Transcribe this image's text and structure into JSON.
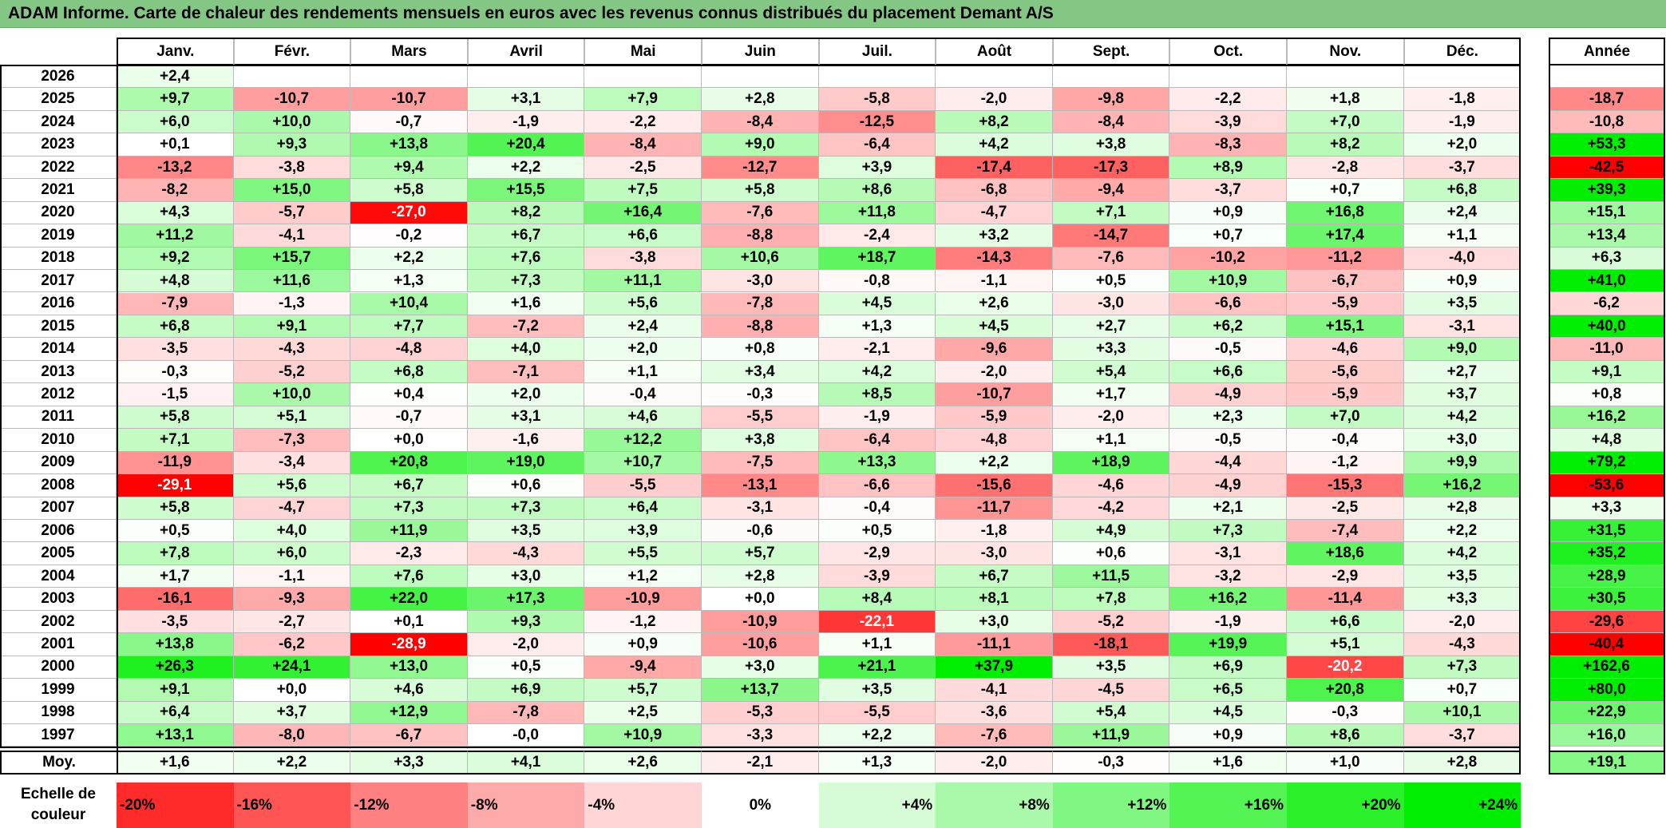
{
  "title": "ADAM Informe. Carte de chaleur des rendements mensuels en euros avec les revenus connus distribués du placement Demant A/S",
  "chart_data": {
    "type": "heatmap",
    "months": [
      "Janv.",
      "Févr.",
      "Mars",
      "Avril",
      "Mai",
      "Juin",
      "Juil.",
      "Août",
      "Sept.",
      "Oct.",
      "Nov.",
      "Déc."
    ],
    "year_header": "Année",
    "avg_label": "Moy.",
    "rows": [
      {
        "year": "2026",
        "values": [
          "+2,4",
          "",
          "",
          "",
          "",
          "",
          "",
          "",
          "",
          "",
          "",
          ""
        ],
        "annual": ""
      },
      {
        "year": "2025",
        "values": [
          "+9,7",
          "-10,7",
          "-10,7",
          "+3,1",
          "+7,9",
          "+2,8",
          "-5,8",
          "-2,0",
          "-9,8",
          "-2,2",
          "+1,8",
          "-1,8"
        ],
        "annual": "-18,7"
      },
      {
        "year": "2024",
        "values": [
          "+6,0",
          "+10,0",
          "-0,7",
          "-1,9",
          "-2,2",
          "-8,4",
          "-12,5",
          "+8,2",
          "-8,4",
          "-3,9",
          "+7,0",
          "-1,9"
        ],
        "annual": "-10,8"
      },
      {
        "year": "2023",
        "values": [
          "+0,1",
          "+9,3",
          "+13,8",
          "+20,4",
          "-8,4",
          "+9,0",
          "-6,4",
          "+4,2",
          "+3,8",
          "-8,3",
          "+8,2",
          "+2,0"
        ],
        "annual": "+53,3"
      },
      {
        "year": "2022",
        "values": [
          "-13,2",
          "-3,8",
          "+9,4",
          "+2,2",
          "-2,5",
          "-12,7",
          "+3,9",
          "-17,4",
          "-17,3",
          "+8,9",
          "-2,8",
          "-3,7"
        ],
        "annual": "-42,5"
      },
      {
        "year": "2021",
        "values": [
          "-8,2",
          "+15,0",
          "+5,8",
          "+15,5",
          "+7,5",
          "+5,8",
          "+8,6",
          "-6,8",
          "-9,4",
          "-3,7",
          "+0,7",
          "+6,8"
        ],
        "annual": "+39,3"
      },
      {
        "year": "2020",
        "values": [
          "+4,3",
          "-5,7",
          "-27,0",
          "+8,2",
          "+16,4",
          "-7,6",
          "+11,8",
          "-4,7",
          "+7,1",
          "+0,9",
          "+16,8",
          "+2,4"
        ],
        "annual": "+15,1"
      },
      {
        "year": "2019",
        "values": [
          "+11,2",
          "-4,1",
          "-0,2",
          "+6,7",
          "+6,6",
          "-8,8",
          "-2,4",
          "+3,2",
          "-14,7",
          "+0,7",
          "+17,4",
          "+1,1"
        ],
        "annual": "+13,4"
      },
      {
        "year": "2018",
        "values": [
          "+9,2",
          "+15,7",
          "+2,2",
          "+7,6",
          "-3,8",
          "+10,6",
          "+18,7",
          "-14,3",
          "-7,6",
          "-10,2",
          "-11,2",
          "-4,0"
        ],
        "annual": "+6,3"
      },
      {
        "year": "2017",
        "values": [
          "+4,8",
          "+11,6",
          "+1,3",
          "+7,3",
          "+11,1",
          "-3,0",
          "-0,8",
          "-1,1",
          "+0,5",
          "+10,9",
          "-6,7",
          "+0,9"
        ],
        "annual": "+41,0"
      },
      {
        "year": "2016",
        "values": [
          "-7,9",
          "-1,3",
          "+10,4",
          "+1,6",
          "+5,6",
          "-7,8",
          "+4,5",
          "+2,6",
          "-3,0",
          "-6,6",
          "-5,9",
          "+3,5"
        ],
        "annual": "-6,2"
      },
      {
        "year": "2015",
        "values": [
          "+6,8",
          "+9,1",
          "+7,7",
          "-7,2",
          "+2,4",
          "-8,8",
          "+1,3",
          "+4,5",
          "+2,7",
          "+6,2",
          "+15,1",
          "-3,1"
        ],
        "annual": "+40,0"
      },
      {
        "year": "2014",
        "values": [
          "-3,5",
          "-4,3",
          "-4,8",
          "+4,0",
          "+2,0",
          "+0,8",
          "-2,1",
          "-9,6",
          "+3,3",
          "-0,5",
          "-4,6",
          "+9,0"
        ],
        "annual": "-11,0"
      },
      {
        "year": "2013",
        "values": [
          "-0,3",
          "-5,2",
          "+6,8",
          "-7,1",
          "+1,1",
          "+3,4",
          "+4,2",
          "-2,0",
          "+5,4",
          "+6,6",
          "-5,6",
          "+2,7"
        ],
        "annual": "+9,1"
      },
      {
        "year": "2012",
        "values": [
          "-1,5",
          "+10,0",
          "+0,4",
          "+2,0",
          "-0,4",
          "-0,3",
          "+8,5",
          "-10,7",
          "+1,7",
          "-4,9",
          "-5,9",
          "+3,7"
        ],
        "annual": "+0,8"
      },
      {
        "year": "2011",
        "values": [
          "+5,8",
          "+5,1",
          "-0,7",
          "+3,1",
          "+4,6",
          "-5,5",
          "-1,9",
          "-5,9",
          "-2,0",
          "+2,3",
          "+7,0",
          "+4,2"
        ],
        "annual": "+16,2"
      },
      {
        "year": "2010",
        "values": [
          "+7,1",
          "-7,3",
          "+0,0",
          "-1,6",
          "+12,2",
          "+3,8",
          "-6,4",
          "-4,8",
          "+1,1",
          "-0,5",
          "-0,4",
          "+3,0"
        ],
        "annual": "+4,8"
      },
      {
        "year": "2009",
        "values": [
          "-11,9",
          "-3,4",
          "+20,8",
          "+19,0",
          "+10,7",
          "-7,5",
          "+13,3",
          "+2,2",
          "+18,9",
          "-4,4",
          "-1,2",
          "+9,9"
        ],
        "annual": "+79,2"
      },
      {
        "year": "2008",
        "values": [
          "-29,1",
          "+5,6",
          "+6,7",
          "+0,6",
          "-5,5",
          "-13,1",
          "-6,6",
          "-15,6",
          "-4,6",
          "-4,9",
          "-15,3",
          "+16,2"
        ],
        "annual": "-53,6"
      },
      {
        "year": "2007",
        "values": [
          "+5,8",
          "-4,7",
          "+7,3",
          "+7,3",
          "+6,4",
          "-3,1",
          "-0,4",
          "-11,7",
          "-4,2",
          "+2,1",
          "-2,5",
          "+2,8"
        ],
        "annual": "+3,3"
      },
      {
        "year": "2006",
        "values": [
          "+0,5",
          "+4,0",
          "+11,9",
          "+3,5",
          "+3,9",
          "-0,6",
          "+0,5",
          "-1,8",
          "+4,9",
          "+7,3",
          "-7,4",
          "+2,2"
        ],
        "annual": "+31,5"
      },
      {
        "year": "2005",
        "values": [
          "+7,8",
          "+6,0",
          "-2,3",
          "-4,3",
          "+5,5",
          "+5,7",
          "-2,9",
          "-3,0",
          "+0,6",
          "-3,1",
          "+18,6",
          "+4,2"
        ],
        "annual": "+35,2"
      },
      {
        "year": "2004",
        "values": [
          "+1,7",
          "-1,1",
          "+7,6",
          "+3,0",
          "+1,2",
          "+2,8",
          "-3,9",
          "+6,7",
          "+11,5",
          "-3,2",
          "-2,9",
          "+3,5"
        ],
        "annual": "+28,9"
      },
      {
        "year": "2003",
        "values": [
          "-16,1",
          "-9,3",
          "+22,0",
          "+17,3",
          "-10,9",
          "+0,0",
          "+8,4",
          "+8,1",
          "+7,8",
          "+16,2",
          "-11,4",
          "+3,3"
        ],
        "annual": "+30,5"
      },
      {
        "year": "2002",
        "values": [
          "-3,5",
          "-2,7",
          "+0,1",
          "+9,3",
          "-1,2",
          "-10,9",
          "-22,1",
          "+3,0",
          "-5,2",
          "-1,9",
          "+6,6",
          "-2,0"
        ],
        "annual": "-29,6"
      },
      {
        "year": "2001",
        "values": [
          "+13,8",
          "-6,2",
          "-28,9",
          "-2,0",
          "+0,9",
          "-10,6",
          "+1,1",
          "-11,1",
          "-18,1",
          "+19,9",
          "+5,1",
          "-4,3"
        ],
        "annual": "-40,4"
      },
      {
        "year": "2000",
        "values": [
          "+26,3",
          "+24,1",
          "+13,0",
          "+0,5",
          "-9,4",
          "+3,0",
          "+21,1",
          "+37,9",
          "+3,5",
          "+6,9",
          "-20,2",
          "+7,3"
        ],
        "annual": "+162,6"
      },
      {
        "year": "1999",
        "values": [
          "+9,1",
          "+0,0",
          "+4,6",
          "+6,9",
          "+5,7",
          "+13,7",
          "+3,5",
          "-4,1",
          "-4,5",
          "+6,5",
          "+20,8",
          "+0,7"
        ],
        "annual": "+80,0"
      },
      {
        "year": "1998",
        "values": [
          "+6,4",
          "+3,7",
          "+12,9",
          "-7,8",
          "+2,5",
          "-5,3",
          "-5,5",
          "-3,6",
          "+5,4",
          "+4,5",
          "-0,3",
          "+10,1"
        ],
        "annual": "+22,9"
      },
      {
        "year": "1997",
        "values": [
          "+13,1",
          "-8,0",
          "-6,7",
          "-0,0",
          "+10,9",
          "-3,3",
          "+2,2",
          "-7,6",
          "+11,9",
          "+0,9",
          "+8,6",
          "-3,7"
        ],
        "annual": "+16,0"
      }
    ],
    "averages": [
      "+1,6",
      "+2,2",
      "+3,3",
      "+4,1",
      "+2,6",
      "-2,1",
      "+1,3",
      "-2,0",
      "-0,3",
      "+1,6",
      "+1,0",
      "+2,8"
    ],
    "average_annual": "+19,1",
    "scale_title_line1": "Echelle de",
    "scale_title_line2": "couleur",
    "scale": [
      "-20%",
      "-16%",
      "-12%",
      "-8%",
      "-4%",
      "0%",
      "+4%",
      "+8%",
      "+12%",
      "+16%",
      "+20%",
      "+24%"
    ],
    "colors": {
      "negative_max": "#ff0000",
      "neutral": "#ffffff",
      "positive_max": "#00ee00",
      "title_bar": "#84c785"
    }
  }
}
